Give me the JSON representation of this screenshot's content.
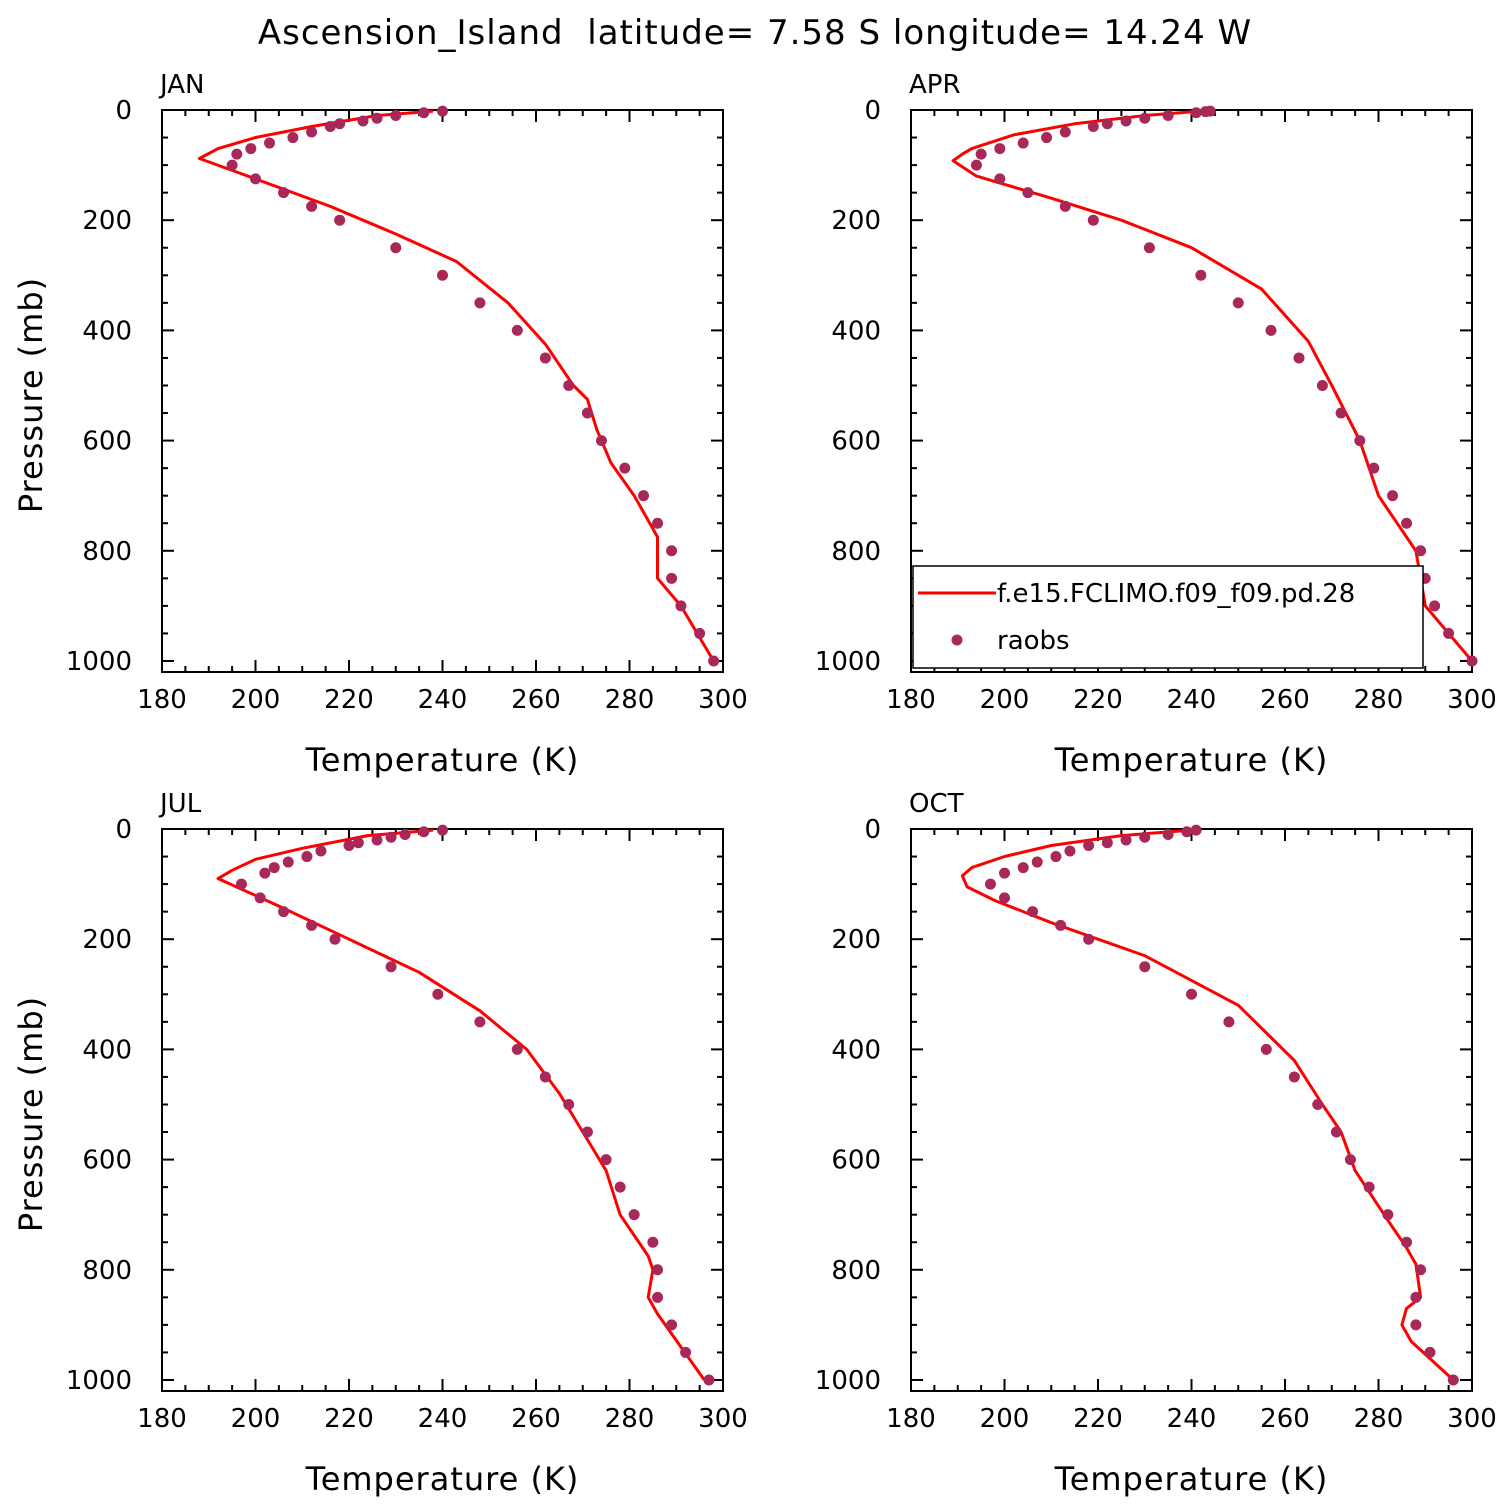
{
  "figure": {
    "title": "Ascension_Island  latitude= 7.58 S longitude= 14.24 W"
  },
  "legend": {
    "items": [
      {
        "label": "f.e15.FCLIMO.f09_f09.pd.28",
        "kind": "line",
        "color": "#ff0000"
      },
      {
        "label": "raobs",
        "kind": "marker",
        "color": "#a8285a"
      }
    ],
    "placement": "lower-right of APR panel"
  },
  "chart_data": [
    {
      "type": "line",
      "title": "JAN",
      "xlabel": "Temperature (K)",
      "ylabel": "Pressure (mb)",
      "xlim": [
        180,
        300
      ],
      "ylim": [
        1020,
        0
      ],
      "xticks": [
        "180",
        "200",
        "220",
        "240",
        "260",
        "280",
        "300"
      ],
      "yticks": [
        "0",
        "200",
        "400",
        "600",
        "800",
        "1000"
      ],
      "grid": false,
      "series": [
        {
          "name": "f.e15.FCLIMO.f09_f09.pd.28",
          "kind": "line",
          "color": "#ff0000",
          "x": [
            238,
            226,
            212,
            200,
            192,
            188,
            200,
            216,
            230,
            243,
            254,
            262,
            268,
            271,
            273,
            276,
            281,
            286,
            286,
            291,
            298
          ],
          "y": [
            2,
            10,
            30,
            50,
            70,
            88,
            125,
            175,
            225,
            275,
            350,
            425,
            500,
            525,
            580,
            640,
            700,
            775,
            850,
            900,
            1000
          ]
        },
        {
          "name": "raobs",
          "kind": "scatter",
          "color": "#a8285a",
          "x": [
            240,
            236,
            230,
            226,
            223,
            218,
            216,
            212,
            208,
            203,
            199,
            196,
            195,
            200,
            206,
            212,
            218,
            230,
            240,
            248,
            256,
            262,
            267,
            271,
            274,
            279,
            283,
            286,
            289,
            289,
            291,
            295,
            298
          ],
          "y": [
            2,
            5,
            10,
            15,
            20,
            25,
            30,
            40,
            50,
            60,
            70,
            80,
            100,
            125,
            150,
            175,
            200,
            250,
            300,
            350,
            400,
            450,
            500,
            550,
            600,
            650,
            700,
            750,
            800,
            850,
            900,
            950,
            1000
          ]
        }
      ]
    },
    {
      "type": "line",
      "title": "APR",
      "xlabel": "Temperature (K)",
      "ylabel": "",
      "xlim": [
        180,
        300
      ],
      "ylim": [
        1020,
        0
      ],
      "xticks": [
        "180",
        "200",
        "220",
        "240",
        "260",
        "280",
        "300"
      ],
      "yticks": [
        "0",
        "200",
        "400",
        "600",
        "800",
        "1000"
      ],
      "grid": false,
      "series": [
        {
          "name": "f.e15.FCLIMO.f09_f09.pd.28",
          "kind": "line",
          "color": "#ff0000",
          "x": [
            242,
            230,
            215,
            202,
            193,
            191,
            189,
            194,
            210,
            225,
            240,
            255,
            265,
            270,
            276,
            280,
            286,
            288,
            290,
            300
          ],
          "y": [
            2,
            10,
            25,
            45,
            70,
            80,
            92,
            120,
            160,
            200,
            250,
            325,
            420,
            500,
            600,
            700,
            775,
            800,
            900,
            1000
          ]
        },
        {
          "name": "raobs",
          "kind": "scatter",
          "color": "#a8285a",
          "x": [
            244,
            243,
            241,
            235,
            230,
            226,
            222,
            219,
            213,
            209,
            204,
            199,
            195,
            194,
            199,
            205,
            213,
            219,
            231,
            242,
            250,
            257,
            263,
            268,
            272,
            276,
            279,
            283,
            286,
            289,
            290,
            292,
            295,
            300
          ],
          "y": [
            2,
            3,
            5,
            10,
            15,
            20,
            25,
            30,
            40,
            50,
            60,
            70,
            80,
            100,
            125,
            150,
            175,
            200,
            250,
            300,
            350,
            400,
            450,
            500,
            550,
            600,
            650,
            700,
            750,
            800,
            850,
            900,
            950,
            1000
          ]
        }
      ]
    },
    {
      "type": "line",
      "title": "JUL",
      "xlabel": "Temperature (K)",
      "ylabel": "Pressure (mb)",
      "xlim": [
        180,
        300
      ],
      "ylim": [
        1020,
        0
      ],
      "xticks": [
        "180",
        "200",
        "220",
        "240",
        "260",
        "280",
        "300"
      ],
      "yticks": [
        "0",
        "200",
        "400",
        "600",
        "800",
        "1000"
      ],
      "grid": false,
      "series": [
        {
          "name": "f.e15.FCLIMO.f09_f09.pd.28",
          "kind": "line",
          "color": "#ff0000",
          "x": [
            238,
            224,
            210,
            200,
            195,
            192,
            205,
            220,
            235,
            248,
            258,
            265,
            270,
            275,
            278,
            284,
            285,
            284,
            286,
            296
          ],
          "y": [
            2,
            12,
            35,
            55,
            75,
            90,
            140,
            200,
            260,
            330,
            400,
            480,
            550,
            620,
            700,
            775,
            800,
            850,
            880,
            1000
          ]
        },
        {
          "name": "raobs",
          "kind": "scatter",
          "color": "#a8285a",
          "x": [
            240,
            236,
            232,
            229,
            226,
            222,
            220,
            214,
            211,
            207,
            204,
            202,
            197,
            201,
            206,
            212,
            217,
            229,
            239,
            248,
            256,
            262,
            267,
            271,
            275,
            278,
            281,
            285,
            286,
            286,
            289,
            292,
            297
          ],
          "y": [
            2,
            5,
            10,
            15,
            20,
            25,
            30,
            40,
            50,
            60,
            70,
            80,
            100,
            125,
            150,
            175,
            200,
            250,
            300,
            350,
            400,
            450,
            500,
            550,
            600,
            650,
            700,
            750,
            800,
            850,
            900,
            950,
            1000
          ]
        }
      ]
    },
    {
      "type": "line",
      "title": "OCT",
      "xlabel": "Temperature (K)",
      "ylabel": "",
      "xlim": [
        180,
        300
      ],
      "ylim": [
        1020,
        0
      ],
      "xticks": [
        "180",
        "200",
        "220",
        "240",
        "260",
        "280",
        "300"
      ],
      "yticks": [
        "0",
        "200",
        "400",
        "600",
        "800",
        "1000"
      ],
      "grid": false,
      "series": [
        {
          "name": "f.e15.FCLIMO.f09_f09.pd.28",
          "kind": "line",
          "color": "#ff0000",
          "x": [
            240,
            225,
            210,
            200,
            193,
            191,
            192,
            198,
            210,
            230,
            250,
            262,
            268,
            272,
            275,
            282,
            286,
            288,
            289,
            286,
            285,
            287,
            296
          ],
          "y": [
            2,
            12,
            30,
            50,
            70,
            85,
            105,
            130,
            170,
            230,
            320,
            420,
            500,
            550,
            620,
            710,
            760,
            790,
            850,
            870,
            900,
            930,
            1000
          ]
        },
        {
          "name": "raobs",
          "kind": "scatter",
          "color": "#a8285a",
          "x": [
            241,
            239,
            235,
            230,
            226,
            222,
            218,
            214,
            211,
            207,
            204,
            200,
            197,
            200,
            206,
            212,
            218,
            230,
            240,
            248,
            256,
            262,
            267,
            271,
            274,
            278,
            282,
            286,
            289,
            288,
            288,
            291,
            296
          ],
          "y": [
            2,
            5,
            10,
            15,
            20,
            25,
            30,
            40,
            50,
            60,
            70,
            80,
            100,
            125,
            150,
            175,
            200,
            250,
            300,
            350,
            400,
            450,
            500,
            550,
            600,
            650,
            700,
            750,
            800,
            850,
            900,
            950,
            1000
          ]
        }
      ]
    }
  ]
}
